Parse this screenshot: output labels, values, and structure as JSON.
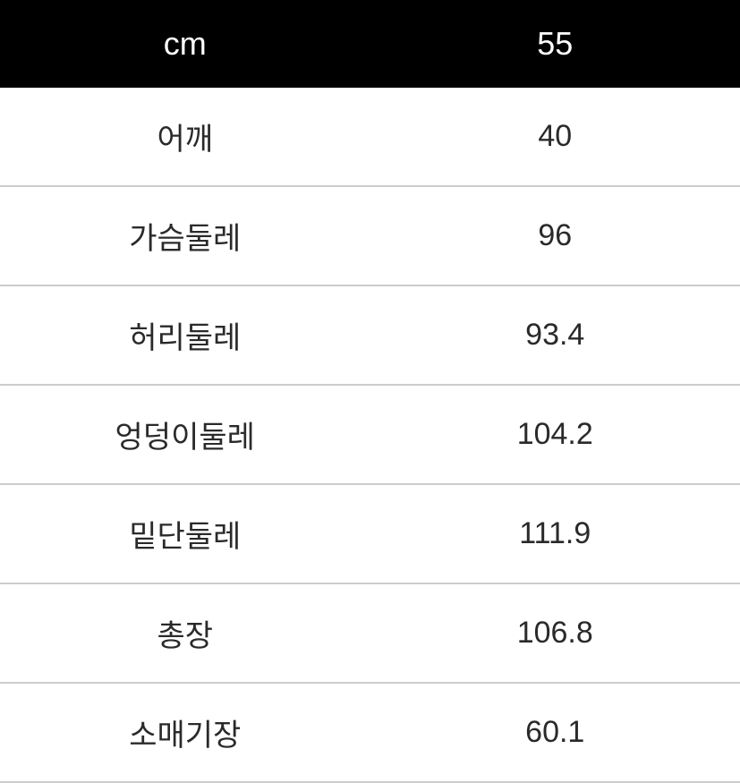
{
  "table": {
    "type": "table",
    "background_color": "#ffffff",
    "header_background": "#000000",
    "header_text_color": "#ffffff",
    "body_text_color": "#2a2a2a",
    "border_color": "#cccccc",
    "header_fontsize": 36,
    "body_fontsize": 34,
    "columns": [
      {
        "key": "label",
        "header": "cm",
        "width_pct": 50,
        "align": "center"
      },
      {
        "key": "value",
        "header": "55",
        "width_pct": 50,
        "align": "center"
      }
    ],
    "rows": [
      {
        "label": "어깨",
        "value": "40"
      },
      {
        "label": "가슴둘레",
        "value": "96"
      },
      {
        "label": "허리둘레",
        "value": "93.4"
      },
      {
        "label": "엉덩이둘레",
        "value": "104.2"
      },
      {
        "label": "밑단둘레",
        "value": "111.9"
      },
      {
        "label": "총장",
        "value": "106.8"
      },
      {
        "label": "소매기장",
        "value": "60.1"
      }
    ]
  }
}
